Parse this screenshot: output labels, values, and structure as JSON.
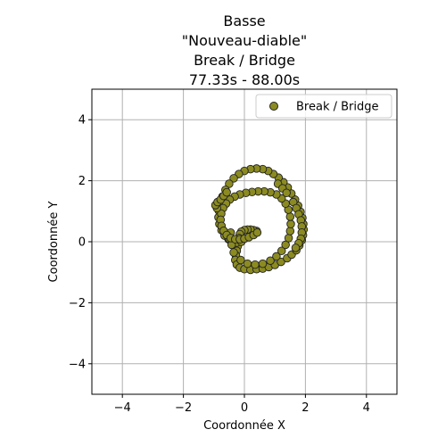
{
  "chart_data": {
    "type": "scatter",
    "title_lines": [
      "Basse",
      "\"Nouveau-diable\"",
      "Break / Bridge",
      "77.33s - 88.00s"
    ],
    "xlabel": "Coordonnée X",
    "ylabel": "Coordonnée Y",
    "xlim": [
      -5,
      5
    ],
    "ylim": [
      -5,
      5
    ],
    "xticks": [
      -4,
      -2,
      0,
      2,
      4
    ],
    "yticks": [
      -4,
      -2,
      0,
      2,
      4
    ],
    "xtick_labels": [
      "−4",
      "−2",
      "0",
      "2",
      "4"
    ],
    "ytick_labels": [
      "−4",
      "−2",
      "0",
      "2",
      "4"
    ],
    "grid": true,
    "legend_position": "top-right",
    "series": [
      {
        "name": "Break / Bridge",
        "color": "#8b8b22",
        "edgecolor": "#222222",
        "points": [
          [
            0.4,
            0.35
          ],
          [
            0.3,
            0.38
          ],
          [
            0.2,
            0.4
          ],
          [
            0.1,
            0.4
          ],
          [
            0.0,
            0.38
          ],
          [
            -0.1,
            0.33
          ],
          [
            -0.15,
            0.25
          ],
          [
            -0.18,
            0.12
          ],
          [
            -0.2,
            0.0
          ],
          [
            -0.22,
            -0.15
          ],
          [
            -0.25,
            -0.3
          ],
          [
            -0.28,
            -0.45
          ],
          [
            -0.3,
            -0.6
          ],
          [
            -0.25,
            -0.75
          ],
          [
            -0.15,
            -0.85
          ],
          [
            0.0,
            -0.9
          ],
          [
            0.2,
            -0.92
          ],
          [
            0.4,
            -0.9
          ],
          [
            0.6,
            -0.88
          ],
          [
            0.8,
            -0.83
          ],
          [
            1.0,
            -0.76
          ],
          [
            1.2,
            -0.66
          ],
          [
            1.4,
            -0.54
          ],
          [
            1.55,
            -0.42
          ],
          [
            1.7,
            -0.28
          ],
          [
            1.8,
            -0.12
          ],
          [
            1.88,
            0.05
          ],
          [
            1.92,
            0.22
          ],
          [
            1.94,
            0.4
          ],
          [
            1.93,
            0.58
          ],
          [
            1.9,
            0.78
          ],
          [
            1.84,
            0.98
          ],
          [
            1.76,
            1.18
          ],
          [
            1.66,
            1.38
          ],
          [
            1.54,
            1.58
          ],
          [
            1.42,
            1.78
          ],
          [
            1.28,
            1.95
          ],
          [
            1.12,
            2.1
          ],
          [
            0.95,
            2.22
          ],
          [
            0.78,
            2.32
          ],
          [
            0.6,
            2.38
          ],
          [
            0.4,
            2.4
          ],
          [
            0.2,
            2.38
          ],
          [
            0.0,
            2.32
          ],
          [
            -0.18,
            2.22
          ],
          [
            -0.35,
            2.08
          ],
          [
            -0.5,
            1.9
          ],
          [
            -0.62,
            1.7
          ],
          [
            -0.72,
            1.48
          ],
          [
            -0.8,
            1.25
          ],
          [
            -0.84,
            1.02
          ],
          [
            -0.85,
            0.8
          ],
          [
            -0.82,
            0.58
          ],
          [
            -0.75,
            0.38
          ],
          [
            -0.65,
            0.2
          ],
          [
            -0.52,
            0.08
          ],
          [
            -0.38,
            0.0
          ],
          [
            -0.25,
            -0.03
          ],
          [
            -0.1,
            0.0
          ],
          [
            -0.45,
            0.3
          ],
          [
            -0.5,
            0.1
          ],
          [
            -0.42,
            -0.1
          ],
          [
            -0.35,
            -0.35
          ],
          [
            -0.12,
            -0.6
          ],
          [
            0.1,
            -0.72
          ],
          [
            0.35,
            -0.75
          ],
          [
            0.6,
            -0.72
          ],
          [
            0.85,
            -0.62
          ],
          [
            1.05,
            -0.48
          ],
          [
            1.22,
            -0.3
          ],
          [
            1.35,
            -0.1
          ],
          [
            1.45,
            0.12
          ],
          [
            1.5,
            0.35
          ],
          [
            1.52,
            0.58
          ],
          [
            1.5,
            0.82
          ],
          [
            1.44,
            1.05
          ],
          [
            1.35,
            1.25
          ],
          [
            1.22,
            1.42
          ],
          [
            1.05,
            1.55
          ],
          [
            0.85,
            1.62
          ],
          [
            0.65,
            1.65
          ],
          [
            0.45,
            1.65
          ],
          [
            0.25,
            1.63
          ],
          [
            0.05,
            1.6
          ],
          [
            -0.15,
            1.55
          ],
          [
            -0.32,
            1.48
          ],
          [
            -0.48,
            1.38
          ],
          [
            -0.6,
            1.25
          ],
          [
            -0.7,
            1.1
          ],
          [
            -0.76,
            0.92
          ],
          [
            -0.78,
            0.72
          ],
          [
            -0.75,
            0.52
          ],
          [
            -0.68,
            0.36
          ],
          [
            -0.58,
            0.22
          ],
          [
            -0.45,
            0.12
          ],
          [
            -0.3,
            0.08
          ],
          [
            -0.15,
            0.08
          ],
          [
            0.0,
            0.1
          ],
          [
            0.15,
            0.15
          ],
          [
            0.3,
            0.22
          ],
          [
            0.42,
            0.3
          ],
          [
            -0.9,
            1.1
          ],
          [
            -0.95,
            1.2
          ],
          [
            -0.88,
            1.3
          ],
          [
            -0.78,
            1.38
          ],
          [
            -0.68,
            1.5
          ],
          [
            -0.58,
            1.62
          ],
          [
            1.1,
            1.9
          ],
          [
            1.25,
            1.75
          ],
          [
            1.38,
            1.6
          ],
          [
            1.6,
            1.3
          ],
          [
            1.7,
            1.1
          ],
          [
            1.78,
            0.9
          ],
          [
            1.85,
            0.7
          ],
          [
            1.88,
            0.5
          ],
          [
            1.88,
            0.3
          ],
          [
            1.85,
            0.1
          ],
          [
            1.78,
            -0.05
          ],
          [
            1.68,
            -0.2
          ]
        ]
      }
    ]
  }
}
